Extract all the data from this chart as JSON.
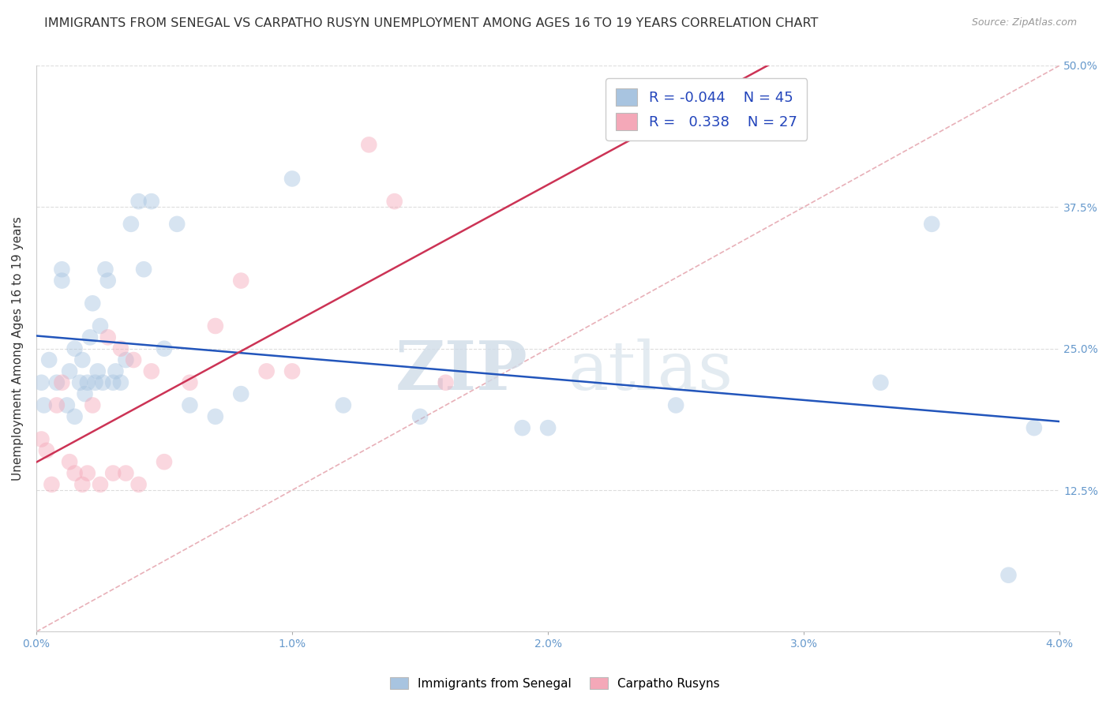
{
  "title": "IMMIGRANTS FROM SENEGAL VS CARPATHO RUSYN UNEMPLOYMENT AMONG AGES 16 TO 19 YEARS CORRELATION CHART",
  "source": "Source: ZipAtlas.com",
  "ylabel": "Unemployment Among Ages 16 to 19 years",
  "xlim": [
    0.0,
    0.04
  ],
  "ylim": [
    0.0,
    0.5
  ],
  "xticks": [
    0.0,
    0.01,
    0.02,
    0.03,
    0.04
  ],
  "xticklabels": [
    "0.0%",
    "1.0%",
    "2.0%",
    "3.0%",
    "4.0%"
  ],
  "yticks_right": [
    0.0,
    0.125,
    0.25,
    0.375,
    0.5
  ],
  "yticklabels_right": [
    "",
    "12.5%",
    "25.0%",
    "37.5%",
    "50.0%"
  ],
  "blue_color": "#a8c4e0",
  "pink_color": "#f4a8b8",
  "blue_line_color": "#2255bb",
  "pink_line_color": "#cc3355",
  "diag_line_color": "#e8b0b8",
  "legend_R_blue": "-0.044",
  "legend_N_blue": "45",
  "legend_R_pink": "0.338",
  "legend_N_pink": "27",
  "label_blue": "Immigrants from Senegal",
  "label_pink": "Carpatho Rusyns",
  "blue_scatter_x": [
    0.0002,
    0.0003,
    0.0005,
    0.0008,
    0.001,
    0.001,
    0.0012,
    0.0013,
    0.0015,
    0.0015,
    0.0017,
    0.0018,
    0.0019,
    0.002,
    0.0021,
    0.0022,
    0.0023,
    0.0024,
    0.0025,
    0.0026,
    0.0027,
    0.0028,
    0.003,
    0.0031,
    0.0033,
    0.0035,
    0.0037,
    0.004,
    0.0042,
    0.0045,
    0.005,
    0.0055,
    0.006,
    0.007,
    0.008,
    0.01,
    0.012,
    0.015,
    0.019,
    0.02,
    0.025,
    0.033,
    0.035,
    0.038,
    0.039
  ],
  "blue_scatter_y": [
    0.22,
    0.2,
    0.24,
    0.22,
    0.31,
    0.32,
    0.2,
    0.23,
    0.19,
    0.25,
    0.22,
    0.24,
    0.21,
    0.22,
    0.26,
    0.29,
    0.22,
    0.23,
    0.27,
    0.22,
    0.32,
    0.31,
    0.22,
    0.23,
    0.22,
    0.24,
    0.36,
    0.38,
    0.32,
    0.38,
    0.25,
    0.36,
    0.2,
    0.19,
    0.21,
    0.4,
    0.2,
    0.19,
    0.18,
    0.18,
    0.2,
    0.22,
    0.36,
    0.05,
    0.18
  ],
  "pink_scatter_x": [
    0.0002,
    0.0004,
    0.0006,
    0.0008,
    0.001,
    0.0013,
    0.0015,
    0.0018,
    0.002,
    0.0022,
    0.0025,
    0.0028,
    0.003,
    0.0033,
    0.0035,
    0.0038,
    0.004,
    0.0045,
    0.005,
    0.006,
    0.007,
    0.008,
    0.009,
    0.01,
    0.013,
    0.014,
    0.016
  ],
  "pink_scatter_y": [
    0.17,
    0.16,
    0.13,
    0.2,
    0.22,
    0.15,
    0.14,
    0.13,
    0.14,
    0.2,
    0.13,
    0.26,
    0.14,
    0.25,
    0.14,
    0.24,
    0.13,
    0.23,
    0.15,
    0.22,
    0.27,
    0.31,
    0.23,
    0.23,
    0.43,
    0.38,
    0.22
  ],
  "watermark_zip": "ZIP",
  "watermark_atlas": "atlas",
  "marker_size": 220,
  "marker_alpha": 0.45,
  "title_fontsize": 11.5,
  "axis_label_fontsize": 11,
  "tick_fontsize": 10,
  "source_fontsize": 9,
  "grid_color": "#dddddd"
}
